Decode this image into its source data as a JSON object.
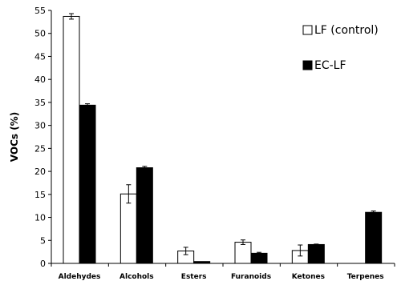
{
  "chart_data": {
    "type": "bar",
    "title": "",
    "xlabel": "",
    "ylabel": "VOCs (%)",
    "ylim": [
      0,
      55
    ],
    "yticks": [
      0,
      5,
      10,
      15,
      20,
      25,
      30,
      35,
      40,
      45,
      50,
      55
    ],
    "grid": false,
    "legend_position": "top-right",
    "categories": [
      "Aldehydes",
      "Alcohols",
      "Esters",
      "Furanoids",
      "Ketones",
      "Terpenes"
    ],
    "series": [
      {
        "name": "LF (control)",
        "color": "#ffffff",
        "edge_color": "#000000",
        "values": [
          53.7,
          15.1,
          2.7,
          4.6,
          2.8,
          0
        ],
        "errors": [
          0.6,
          2.0,
          0.8,
          0.5,
          1.2,
          0
        ]
      },
      {
        "name": "EC-LF",
        "color": "#000000",
        "edge_color": "#000000",
        "values": [
          34.4,
          20.8,
          0.4,
          2.2,
          4.1,
          11.1
        ],
        "errors": [
          0.3,
          0.3,
          0.0,
          0.2,
          0.1,
          0.3
        ]
      }
    ]
  }
}
